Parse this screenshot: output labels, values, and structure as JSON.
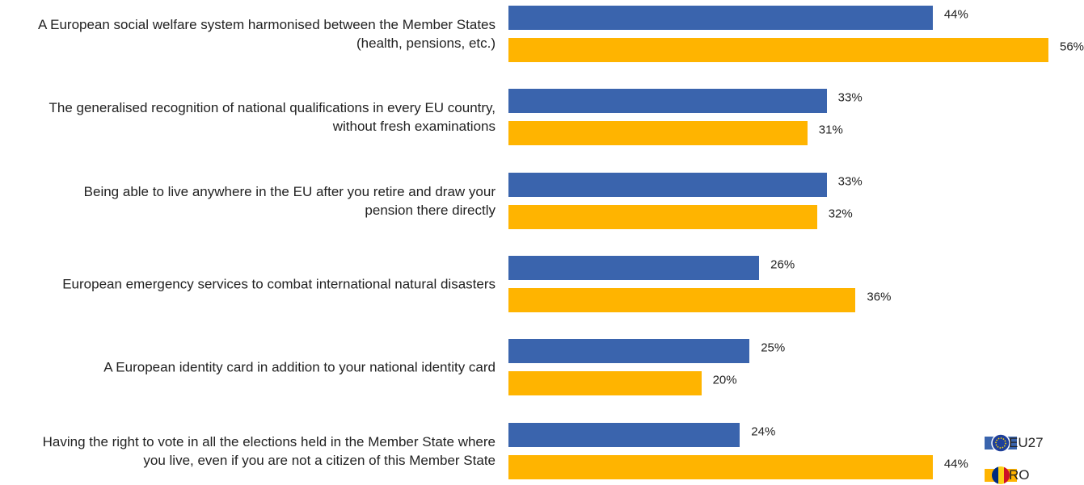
{
  "chart_data": {
    "type": "bar",
    "orientation": "horizontal",
    "categories": [
      "A European social welfare system harmonised between the Member States\n(health, pensions, etc.)",
      "The generalised recognition of national qualifications in every EU country,\nwithout fresh examinations",
      "Being able to live anywhere in the EU after you retire and draw your\npension there directly",
      "European emergency services to combat international natural disasters",
      "A European identity card in addition to your national identity card",
      "Having the right to vote in all the elections held in the Member State where\nyou live, even if you are not a citizen of this Member State"
    ],
    "series": [
      {
        "name": "EU27",
        "color": "#3a64ad",
        "values": [
          44,
          33,
          33,
          26,
          25,
          24
        ],
        "value_labels": [
          "44%",
          "33%",
          "33%",
          "26%",
          "25%",
          "24%"
        ]
      },
      {
        "name": "RO",
        "color": "#ffb400",
        "values": [
          56,
          31,
          32,
          36,
          20,
          44
        ],
        "value_labels": [
          "56%",
          "31%",
          "32%",
          "36%",
          "20%",
          "44%"
        ]
      }
    ],
    "legend": "bottom-right"
  }
}
